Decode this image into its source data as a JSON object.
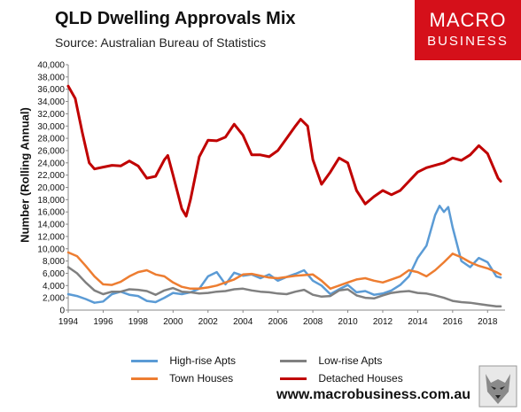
{
  "header": {
    "title": "QLD Dwelling Approvals Mix",
    "subtitle": "Source: Australian Bureau of Statistics"
  },
  "brand": {
    "line1": "MACRO",
    "line2": "BUSINESS",
    "color": "#d5101a"
  },
  "footer": {
    "url": "www.macrobusiness.com.au"
  },
  "chart_data": {
    "type": "line",
    "ylabel": "Number (Rolling Annual)",
    "xlim": [
      1994,
      2019
    ],
    "ylim": [
      0,
      40000
    ],
    "x_ticks": [
      "1994",
      "1996",
      "1998",
      "2000",
      "2002",
      "2004",
      "2006",
      "2008",
      "2010",
      "2012",
      "2014",
      "2016",
      "2018"
    ],
    "y_ticks": [
      "0",
      "2,000",
      "4,000",
      "6,000",
      "8,000",
      "10,000",
      "12,000",
      "14,000",
      "16,000",
      "18,000",
      "20,000",
      "22,000",
      "24,000",
      "26,000",
      "28,000",
      "30,000",
      "32,000",
      "34,000",
      "36,000",
      "38,000",
      "40,000"
    ],
    "grid": false,
    "legend_position": "bottom",
    "series": [
      {
        "name": "High-rise Apts",
        "color": "#5b9bd5",
        "points": [
          [
            1994,
            2600
          ],
          [
            1994.5,
            2300
          ],
          [
            1995,
            1800
          ],
          [
            1995.5,
            1200
          ],
          [
            1996,
            1400
          ],
          [
            1996.5,
            2600
          ],
          [
            1997,
            3000
          ],
          [
            1997.5,
            2500
          ],
          [
            1998,
            2300
          ],
          [
            1998.5,
            1500
          ],
          [
            1999,
            1300
          ],
          [
            1999.5,
            2000
          ],
          [
            2000,
            2800
          ],
          [
            2000.5,
            2600
          ],
          [
            2001,
            2900
          ],
          [
            2001.5,
            3500
          ],
          [
            2002,
            5500
          ],
          [
            2002.5,
            6200
          ],
          [
            2003,
            4200
          ],
          [
            2003.5,
            6100
          ],
          [
            2004,
            5600
          ],
          [
            2004.5,
            5800
          ],
          [
            2005,
            5200
          ],
          [
            2005.5,
            5800
          ],
          [
            2006,
            4800
          ],
          [
            2006.5,
            5400
          ],
          [
            2007,
            5900
          ],
          [
            2007.5,
            6500
          ],
          [
            2008,
            4800
          ],
          [
            2008.5,
            4000
          ],
          [
            2009,
            2600
          ],
          [
            2009.5,
            3400
          ],
          [
            2010,
            4100
          ],
          [
            2010.5,
            2900
          ],
          [
            2011,
            3100
          ],
          [
            2011.5,
            2500
          ],
          [
            2012,
            2700
          ],
          [
            2012.5,
            3200
          ],
          [
            2013,
            4100
          ],
          [
            2013.5,
            5500
          ],
          [
            2014,
            8500
          ],
          [
            2014.5,
            10500
          ],
          [
            2015,
            15500
          ],
          [
            2015.25,
            17000
          ],
          [
            2015.5,
            16000
          ],
          [
            2015.75,
            16800
          ],
          [
            2016,
            13500
          ],
          [
            2016.5,
            8000
          ],
          [
            2017,
            7000
          ],
          [
            2017.5,
            8500
          ],
          [
            2018,
            7800
          ],
          [
            2018.5,
            5500
          ],
          [
            2018.75,
            5300
          ]
        ]
      },
      {
        "name": "Low-rise Apts",
        "color": "#808080",
        "points": [
          [
            1994,
            7000
          ],
          [
            1994.5,
            6000
          ],
          [
            1995,
            4500
          ],
          [
            1995.5,
            3200
          ],
          [
            1996,
            2600
          ],
          [
            1996.5,
            3000
          ],
          [
            1997,
            3000
          ],
          [
            1997.5,
            3400
          ],
          [
            1998,
            3300
          ],
          [
            1998.5,
            3100
          ],
          [
            1999,
            2500
          ],
          [
            1999.5,
            3200
          ],
          [
            2000,
            3600
          ],
          [
            2000.5,
            3000
          ],
          [
            2001,
            2900
          ],
          [
            2001.5,
            2700
          ],
          [
            2002,
            2800
          ],
          [
            2002.5,
            3000
          ],
          [
            2003,
            3100
          ],
          [
            2003.5,
            3400
          ],
          [
            2004,
            3500
          ],
          [
            2004.5,
            3200
          ],
          [
            2005,
            3000
          ],
          [
            2005.5,
            2900
          ],
          [
            2006,
            2700
          ],
          [
            2006.5,
            2600
          ],
          [
            2007,
            3000
          ],
          [
            2007.5,
            3300
          ],
          [
            2008,
            2500
          ],
          [
            2008.5,
            2200
          ],
          [
            2009,
            2300
          ],
          [
            2009.5,
            3200
          ],
          [
            2010,
            3400
          ],
          [
            2010.5,
            2400
          ],
          [
            2011,
            2000
          ],
          [
            2011.5,
            1900
          ],
          [
            2012,
            2400
          ],
          [
            2012.5,
            2800
          ],
          [
            2013,
            3000
          ],
          [
            2013.5,
            3100
          ],
          [
            2014,
            2800
          ],
          [
            2014.5,
            2700
          ],
          [
            2015,
            2400
          ],
          [
            2015.5,
            2000
          ],
          [
            2016,
            1500
          ],
          [
            2016.5,
            1300
          ],
          [
            2017,
            1200
          ],
          [
            2017.5,
            1000
          ],
          [
            2018,
            800
          ],
          [
            2018.5,
            600
          ],
          [
            2018.75,
            600
          ]
        ]
      },
      {
        "name": "Town Houses",
        "color": "#ed7d31",
        "points": [
          [
            1994,
            9400
          ],
          [
            1994.5,
            8800
          ],
          [
            1995,
            7200
          ],
          [
            1995.5,
            5500
          ],
          [
            1996,
            4200
          ],
          [
            1996.5,
            4100
          ],
          [
            1997,
            4600
          ],
          [
            1997.5,
            5500
          ],
          [
            1998,
            6200
          ],
          [
            1998.5,
            6500
          ],
          [
            1999,
            5800
          ],
          [
            1999.5,
            5500
          ],
          [
            2000,
            4500
          ],
          [
            2000.5,
            3800
          ],
          [
            2001,
            3500
          ],
          [
            2001.5,
            3500
          ],
          [
            2002,
            3700
          ],
          [
            2002.5,
            4000
          ],
          [
            2003,
            4500
          ],
          [
            2003.5,
            5000
          ],
          [
            2004,
            5800
          ],
          [
            2004.5,
            5900
          ],
          [
            2005,
            5600
          ],
          [
            2005.5,
            5300
          ],
          [
            2006,
            5200
          ],
          [
            2006.5,
            5400
          ],
          [
            2007,
            5600
          ],
          [
            2007.5,
            5700
          ],
          [
            2008,
            5800
          ],
          [
            2008.5,
            4800
          ],
          [
            2009,
            3500
          ],
          [
            2009.5,
            4000
          ],
          [
            2010,
            4500
          ],
          [
            2010.5,
            5000
          ],
          [
            2011,
            5200
          ],
          [
            2011.5,
            4800
          ],
          [
            2012,
            4500
          ],
          [
            2012.5,
            5000
          ],
          [
            2013,
            5500
          ],
          [
            2013.5,
            6500
          ],
          [
            2014,
            6200
          ],
          [
            2014.5,
            5500
          ],
          [
            2015,
            6500
          ],
          [
            2015.5,
            7800
          ],
          [
            2016,
            9200
          ],
          [
            2016.5,
            8600
          ],
          [
            2017,
            7800
          ],
          [
            2017.5,
            7200
          ],
          [
            2018,
            6800
          ],
          [
            2018.5,
            6200
          ],
          [
            2018.75,
            5800
          ]
        ]
      },
      {
        "name": "Detached Houses",
        "color": "#c00000",
        "points": [
          [
            1994,
            36500
          ],
          [
            1994.4,
            34500
          ],
          [
            1994.8,
            29000
          ],
          [
            1995.2,
            24000
          ],
          [
            1995.5,
            23000
          ],
          [
            1996,
            23300
          ],
          [
            1996.5,
            23600
          ],
          [
            1997,
            23500
          ],
          [
            1997.5,
            24300
          ],
          [
            1998,
            23500
          ],
          [
            1998.5,
            21500
          ],
          [
            1999,
            21800
          ],
          [
            1999.5,
            24500
          ],
          [
            1999.7,
            25200
          ],
          [
            2000,
            22000
          ],
          [
            2000.5,
            16500
          ],
          [
            2000.75,
            15300
          ],
          [
            2001,
            18000
          ],
          [
            2001.5,
            25000
          ],
          [
            2002,
            27700
          ],
          [
            2002.5,
            27600
          ],
          [
            2003,
            28200
          ],
          [
            2003.5,
            30300
          ],
          [
            2004,
            28500
          ],
          [
            2004.5,
            25300
          ],
          [
            2005,
            25300
          ],
          [
            2005.5,
            25000
          ],
          [
            2006,
            26000
          ],
          [
            2006.5,
            28000
          ],
          [
            2007,
            30000
          ],
          [
            2007.3,
            31100
          ],
          [
            2007.7,
            30000
          ],
          [
            2008,
            24500
          ],
          [
            2008.5,
            20500
          ],
          [
            2009,
            22500
          ],
          [
            2009.5,
            24800
          ],
          [
            2010,
            24000
          ],
          [
            2010.5,
            19500
          ],
          [
            2011,
            17300
          ],
          [
            2011.5,
            18500
          ],
          [
            2012,
            19500
          ],
          [
            2012.5,
            18800
          ],
          [
            2013,
            19500
          ],
          [
            2013.5,
            21000
          ],
          [
            2014,
            22500
          ],
          [
            2014.5,
            23200
          ],
          [
            2015,
            23600
          ],
          [
            2015.5,
            24000
          ],
          [
            2016,
            24800
          ],
          [
            2016.5,
            24400
          ],
          [
            2017,
            25300
          ],
          [
            2017.5,
            26800
          ],
          [
            2018,
            25500
          ],
          [
            2018.3,
            23500
          ],
          [
            2018.6,
            21500
          ],
          [
            2018.75,
            21000
          ]
        ]
      }
    ]
  }
}
